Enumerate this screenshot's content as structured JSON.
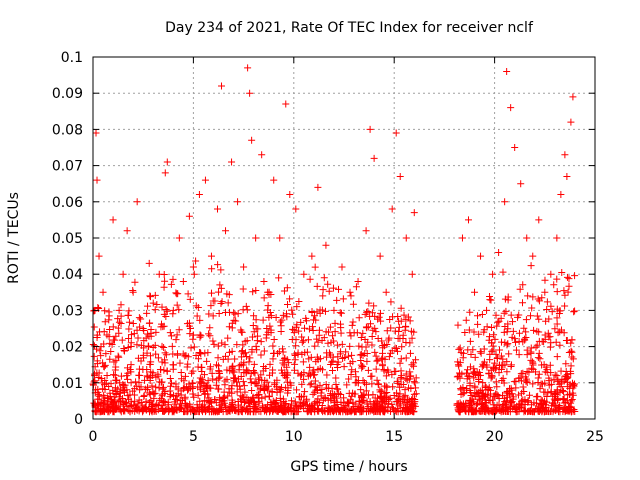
{
  "chart_data": {
    "type": "scatter",
    "title": "Day 234 of 2021, Rate Of TEC Index for receiver nclf",
    "xlabel": "GPS time / hours",
    "ylabel": "ROTI / TECUs",
    "xlim": [
      0,
      25
    ],
    "ylim": [
      0,
      0.1
    ],
    "xticks": [
      0,
      5,
      10,
      15,
      20,
      25
    ],
    "xtick_labels": [
      "0",
      "5",
      "10",
      "15",
      "20",
      "25"
    ],
    "yticks": [
      0,
      0.01,
      0.02,
      0.03,
      0.04,
      0.05,
      0.06,
      0.07,
      0.08,
      0.09,
      0.1
    ],
    "ytick_labels": [
      "0",
      "0.01",
      "0.02",
      "0.03",
      "0.04",
      "0.05",
      "0.06",
      "0.07",
      "0.08",
      "0.09",
      "0.1"
    ],
    "grid": true,
    "marker": "+",
    "marker_color": "#ff0000",
    "data_gap_hours": [
      16.1,
      18.1
    ],
    "series": [
      {
        "name": "ROTI",
        "x": [
          0.1,
          0.15,
          0.2,
          0.3,
          0.4,
          0.5,
          0.7,
          1.0,
          1.3,
          1.5,
          1.7,
          2.0,
          2.2,
          2.5,
          2.8,
          3.0,
          3.3,
          3.6,
          3.7,
          4.0,
          4.3,
          4.5,
          4.8,
          5.0,
          5.3,
          5.6,
          5.9,
          6.2,
          6.4,
          6.6,
          6.9,
          7.2,
          7.5,
          7.7,
          7.8,
          7.9,
          8.1,
          8.4,
          8.7,
          9.0,
          9.3,
          9.6,
          9.8,
          10.1,
          10.5,
          10.9,
          11.2,
          11.6,
          12.0,
          12.4,
          12.8,
          13.2,
          13.6,
          13.8,
          14.0,
          14.3,
          14.6,
          14.9,
          15.1,
          15.3,
          15.6,
          15.9,
          16.0,
          18.2,
          18.4,
          18.7,
          19.0,
          19.3,
          19.6,
          19.9,
          20.2,
          20.5,
          20.6,
          20.8,
          21.0,
          21.3,
          21.6,
          21.9,
          22.2,
          22.5,
          22.8,
          23.1,
          23.3,
          23.5,
          23.6,
          23.8,
          23.9
        ],
        "y": [
          0.03,
          0.079,
          0.066,
          0.045,
          0.02,
          0.035,
          0.012,
          0.055,
          0.03,
          0.04,
          0.052,
          0.035,
          0.06,
          0.025,
          0.043,
          0.032,
          0.04,
          0.068,
          0.071,
          0.03,
          0.05,
          0.038,
          0.056,
          0.042,
          0.062,
          0.066,
          0.045,
          0.058,
          0.092,
          0.052,
          0.071,
          0.06,
          0.042,
          0.097,
          0.09,
          0.077,
          0.05,
          0.073,
          0.035,
          0.066,
          0.05,
          0.087,
          0.062,
          0.058,
          0.04,
          0.045,
          0.064,
          0.048,
          0.03,
          0.042,
          0.035,
          0.038,
          0.052,
          0.08,
          0.072,
          0.045,
          0.035,
          0.058,
          0.079,
          0.067,
          0.05,
          0.04,
          0.057,
          0.015,
          0.05,
          0.055,
          0.035,
          0.045,
          0.03,
          0.04,
          0.046,
          0.06,
          0.096,
          0.086,
          0.075,
          0.065,
          0.05,
          0.045,
          0.055,
          0.035,
          0.04,
          0.05,
          0.062,
          0.073,
          0.067,
          0.082,
          0.089
        ]
      }
    ]
  }
}
